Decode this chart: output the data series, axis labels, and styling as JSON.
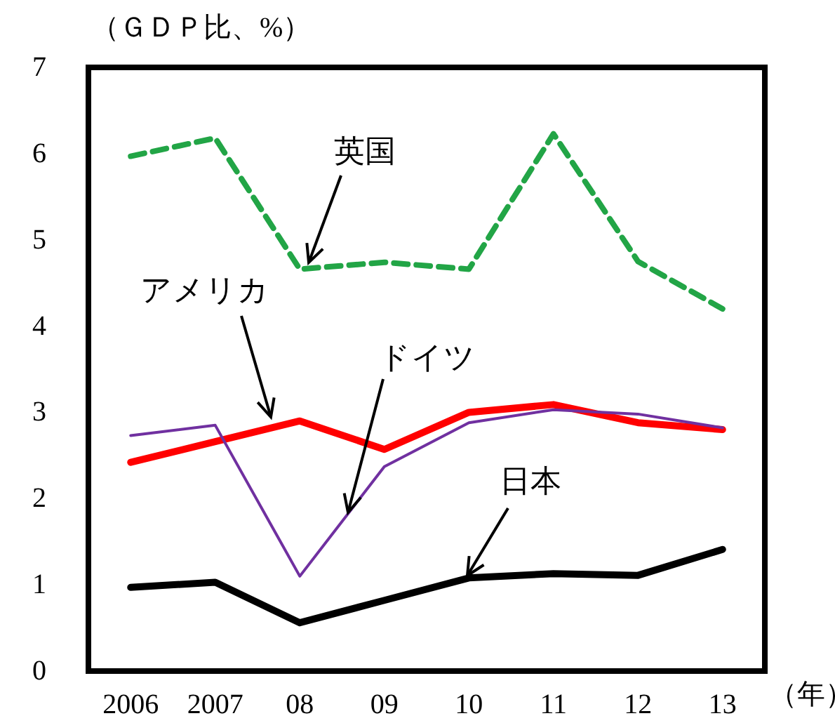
{
  "chart_data": {
    "type": "line",
    "ylabel": "（ＧＤＰ比、%）",
    "xlabel": "（年）",
    "categories": [
      "2006",
      "2007",
      "08",
      "09",
      "10",
      "11",
      "12",
      "13"
    ],
    "ylim": [
      0,
      7
    ],
    "yticks": [
      0,
      1,
      2,
      3,
      4,
      5,
      6,
      7
    ],
    "grid": false,
    "legend": false,
    "marker": "none",
    "series": [
      {
        "name": "英国",
        "color": "#22a546",
        "line_style": "dashed",
        "values": [
          5.97,
          6.18,
          4.66,
          4.74,
          4.66,
          6.23,
          4.75,
          4.2
        ]
      },
      {
        "name": "アメリカ",
        "color": "#ff0000",
        "line_style": "solid",
        "values": [
          2.42,
          2.66,
          2.9,
          2.57,
          3.0,
          3.09,
          2.88,
          2.8
        ]
      },
      {
        "name": "ドイツ",
        "color": "#7030a0",
        "line_style": "solid",
        "values": [
          2.73,
          2.85,
          1.1,
          2.37,
          2.88,
          3.03,
          2.98,
          2.82
        ]
      },
      {
        "name": "日本",
        "color": "#000000",
        "line_style": "solid",
        "values": [
          0.97,
          1.03,
          0.56,
          0.82,
          1.08,
          1.13,
          1.11,
          1.41
        ]
      }
    ]
  }
}
